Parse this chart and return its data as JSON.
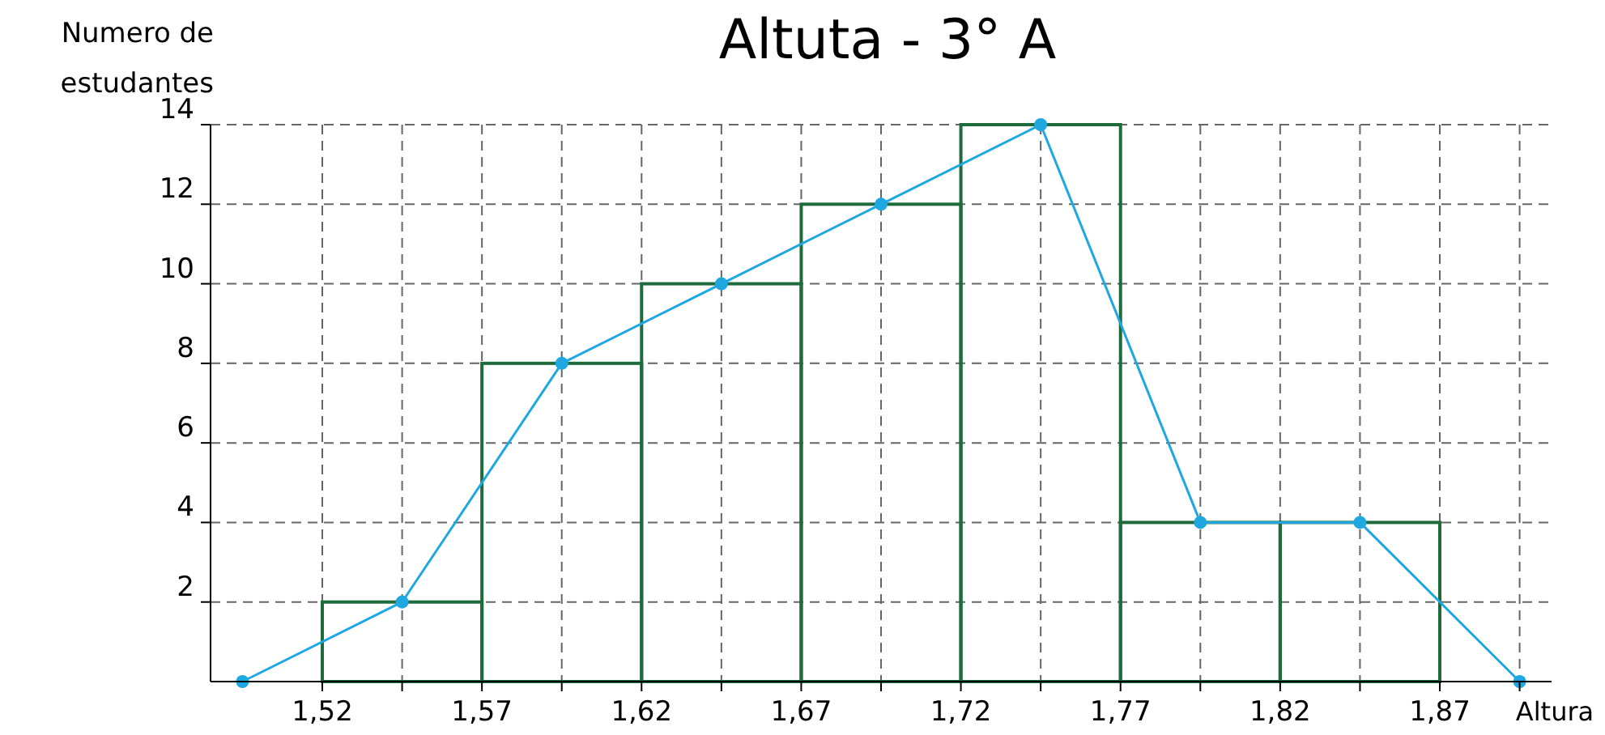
{
  "chart_data": {
    "type": "histogram",
    "title": "Altuta - 3° A",
    "xlabel": "Altura",
    "ylabel": "Numero de estudantes",
    "xlim": [
      1.485,
      1.905
    ],
    "ylim": [
      0,
      14
    ],
    "xticks": [
      {
        "value": 1.52,
        "label": "1,52"
      },
      {
        "value": 1.545,
        "label": null
      },
      {
        "value": 1.57,
        "label": "1,57"
      },
      {
        "value": 1.595,
        "label": null
      },
      {
        "value": 1.62,
        "label": "1,62"
      },
      {
        "value": 1.645,
        "label": null
      },
      {
        "value": 1.67,
        "label": "1,67"
      },
      {
        "value": 1.695,
        "label": null
      },
      {
        "value": 1.72,
        "label": "1,72"
      },
      {
        "value": 1.745,
        "label": null
      },
      {
        "value": 1.77,
        "label": "1,77"
      },
      {
        "value": 1.795,
        "label": null
      },
      {
        "value": 1.82,
        "label": "1,82"
      },
      {
        "value": 1.845,
        "label": null
      },
      {
        "value": 1.87,
        "label": "1,87"
      },
      {
        "value": 1.895,
        "label": null
      }
    ],
    "yticks": [
      2,
      4,
      6,
      8,
      10,
      12,
      14
    ],
    "grid": true,
    "series": [
      {
        "color": "#1e6b3c",
        "bins": [
          1.52,
          1.57,
          1.62,
          1.67,
          1.72,
          1.77,
          1.82,
          1.87
        ],
        "values": [
          2,
          8,
          10,
          12,
          14,
          4,
          4
        ]
      },
      {
        "type": "line",
        "color": "#1ea7e1",
        "marker": "circle",
        "x": [
          1.495,
          1.545,
          1.595,
          1.645,
          1.695,
          1.745,
          1.795,
          1.845,
          1.895
        ],
        "values": [
          0,
          2,
          8,
          10,
          12,
          14,
          4,
          4,
          0
        ]
      }
    ]
  }
}
